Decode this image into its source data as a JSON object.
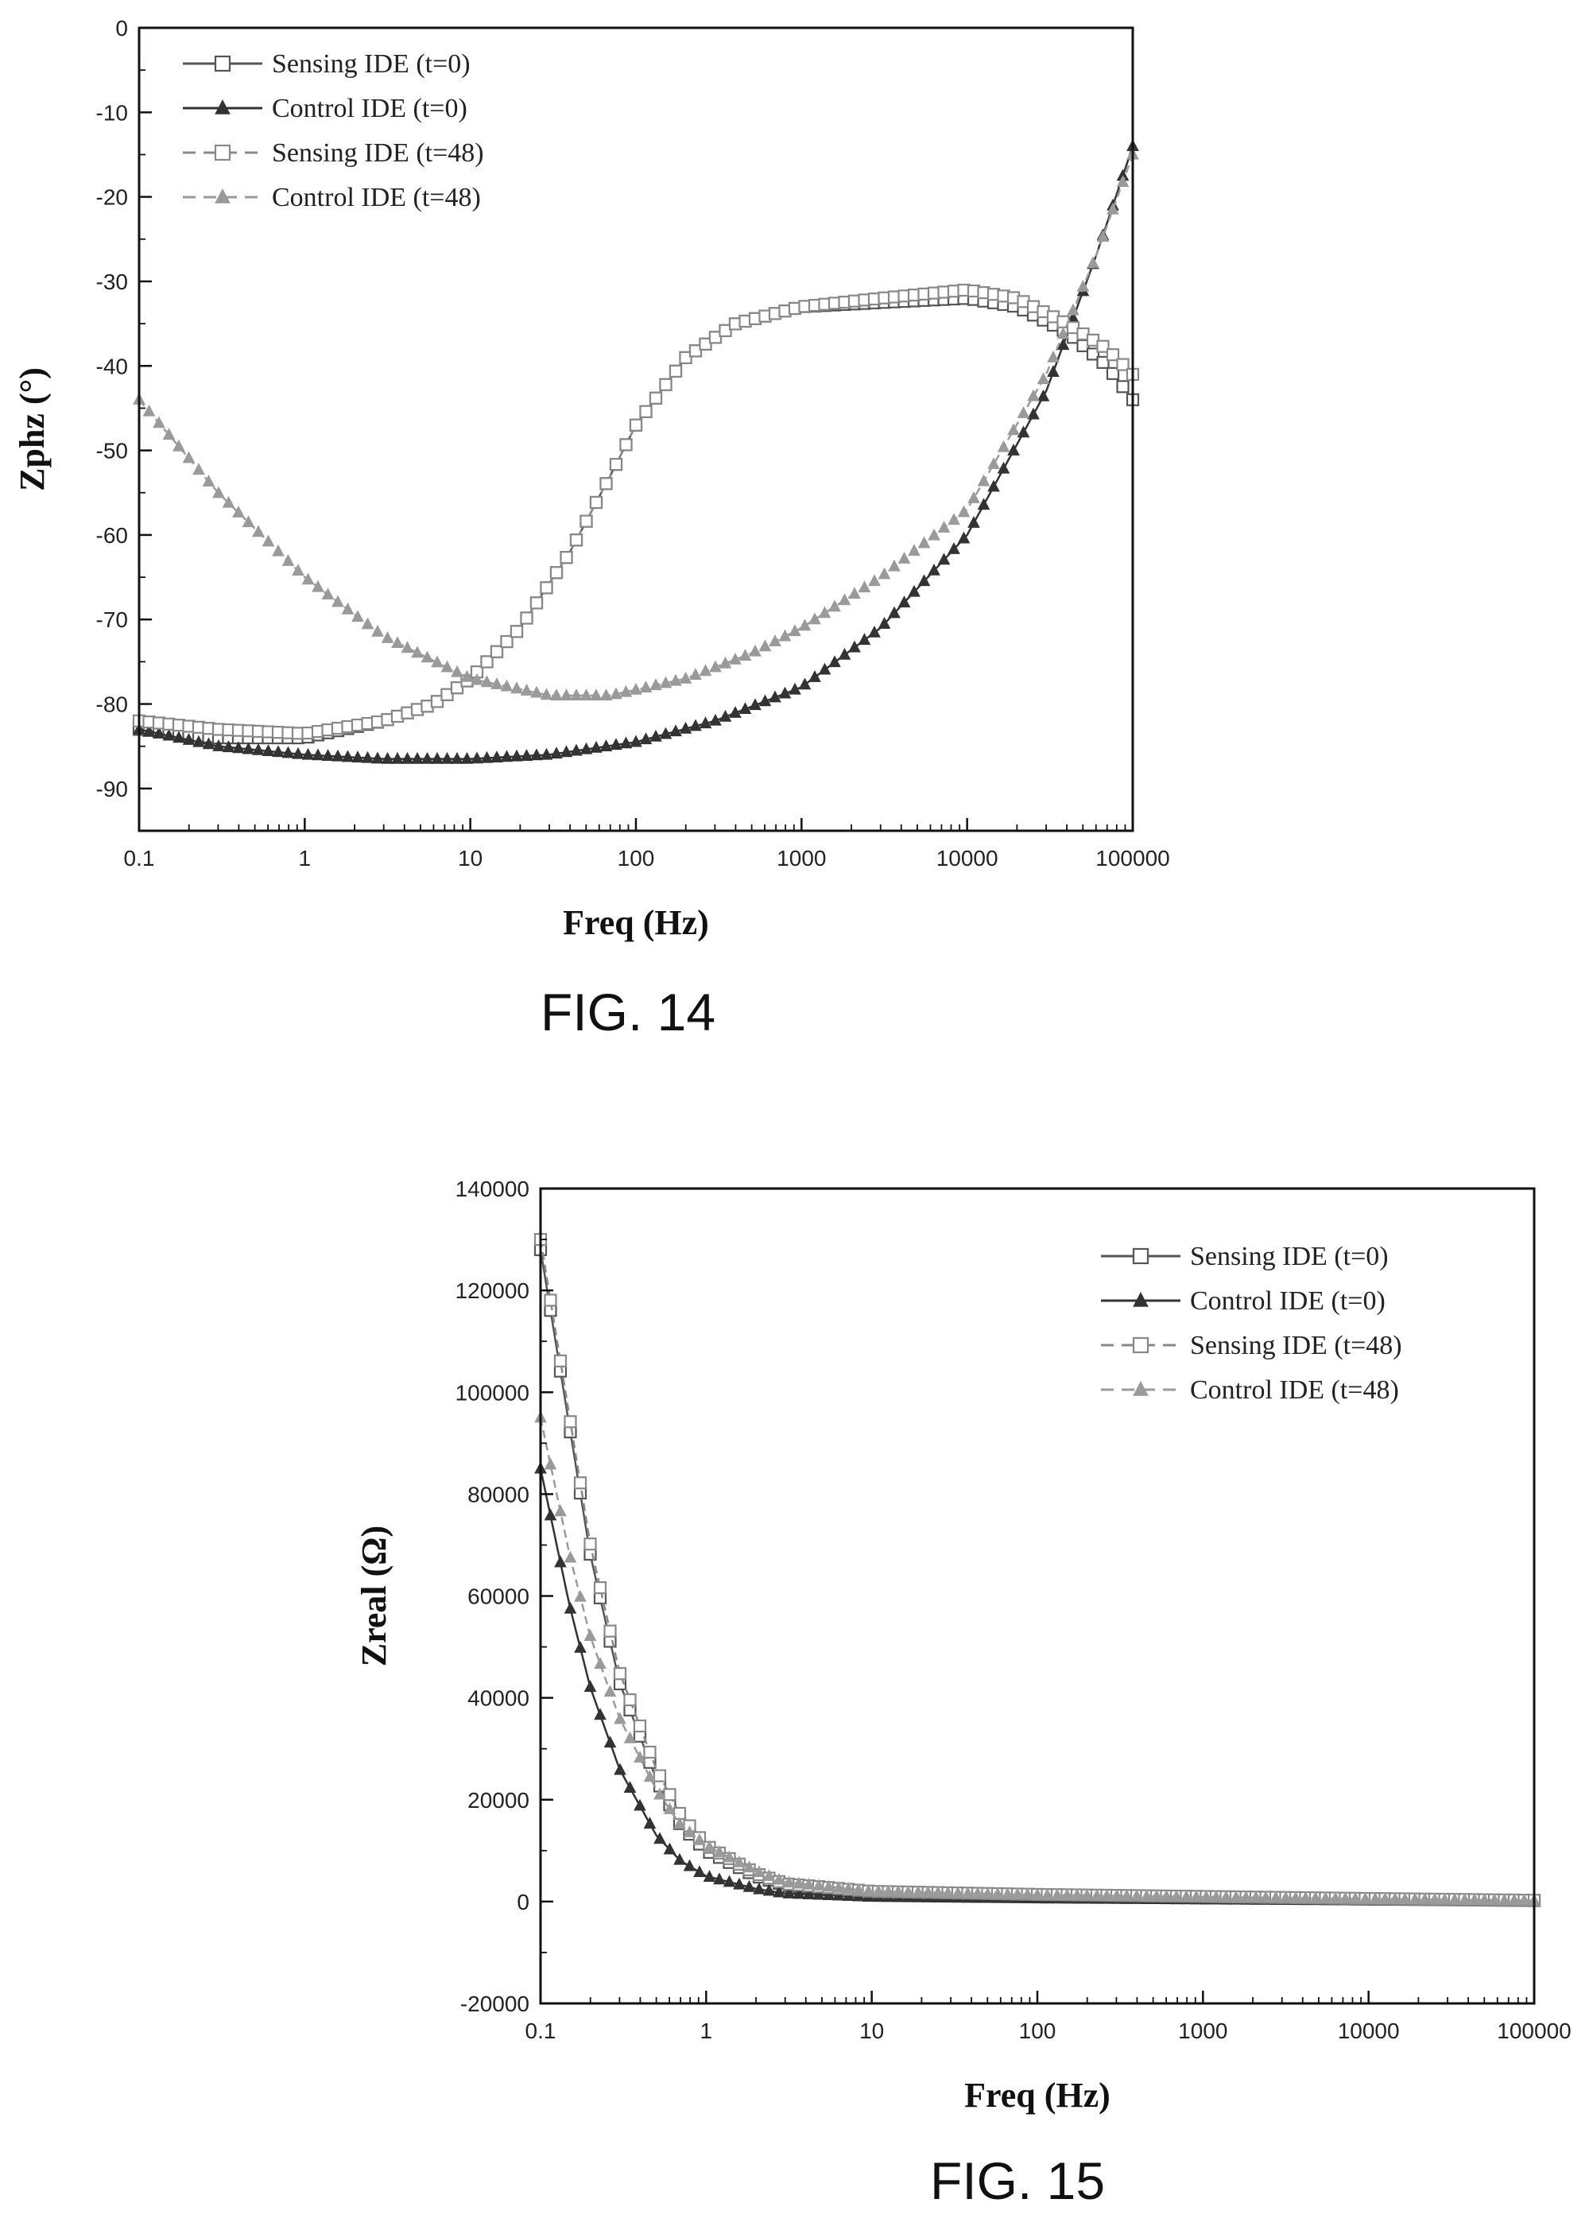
{
  "figures": [
    {
      "caption": "FIG. 14",
      "chart_data": {
        "type": "scatter",
        "title": "",
        "xlabel": "Freq (Hz)",
        "ylabel": "Zphz (°)",
        "xscale": "log",
        "xlim": [
          0.1,
          100000
        ],
        "ylim": [
          -95,
          0
        ],
        "xticks": [
          "0.1",
          "1",
          "10",
          "100",
          "1000",
          "10000",
          "100000"
        ],
        "yticks": [
          "0",
          "-10",
          "-20",
          "-30",
          "-40",
          "-50",
          "-60",
          "-70",
          "-80",
          "-90"
        ],
        "legend_position": "top-left",
        "grid": false,
        "series": [
          {
            "name": "Sensing IDE (t=0)",
            "marker": "square-open",
            "line": "solid",
            "color": "#555555",
            "points": [
              [
                0.1,
                -83
              ],
              [
                0.3,
                -84
              ],
              [
                1,
                -84
              ],
              [
                3,
                -82
              ],
              [
                6,
                -80
              ],
              [
                10,
                -77
              ],
              [
                20,
                -71
              ],
              [
                40,
                -62
              ],
              [
                70,
                -53
              ],
              [
                100,
                -47
              ],
              [
                200,
                -39
              ],
              [
                400,
                -35
              ],
              [
                1000,
                -33
              ],
              [
                3000,
                -32.5
              ],
              [
                10000,
                -32
              ],
              [
                20000,
                -33
              ],
              [
                40000,
                -36
              ],
              [
                70000,
                -40
              ],
              [
                100000,
                -44
              ]
            ]
          },
          {
            "name": "Control IDE (t=0)",
            "marker": "triangle-filled",
            "line": "solid",
            "color": "#333333",
            "points": [
              [
                0.1,
                -83
              ],
              [
                0.3,
                -85
              ],
              [
                1,
                -86
              ],
              [
                3,
                -86.5
              ],
              [
                10,
                -86.5
              ],
              [
                30,
                -86
              ],
              [
                100,
                -84.5
              ],
              [
                300,
                -82
              ],
              [
                1000,
                -78
              ],
              [
                3000,
                -71
              ],
              [
                10000,
                -60
              ],
              [
                30000,
                -43
              ],
              [
                60000,
                -27
              ],
              [
                100000,
                -14
              ]
            ]
          },
          {
            "name": "Sensing IDE (t=48)",
            "marker": "square-open",
            "line": "dashed",
            "color": "#888888",
            "points": [
              [
                0.1,
                -82
              ],
              [
                0.3,
                -83
              ],
              [
                1,
                -83.5
              ],
              [
                3,
                -82
              ],
              [
                6,
                -80
              ],
              [
                10,
                -77
              ],
              [
                20,
                -71
              ],
              [
                40,
                -62
              ],
              [
                70,
                -53
              ],
              [
                100,
                -47
              ],
              [
                200,
                -39
              ],
              [
                400,
                -35
              ],
              [
                1000,
                -33
              ],
              [
                3000,
                -32
              ],
              [
                10000,
                -31
              ],
              [
                20000,
                -32
              ],
              [
                40000,
                -35
              ],
              [
                70000,
                -38
              ],
              [
                100000,
                -41
              ]
            ]
          },
          {
            "name": "Control IDE (t=48)",
            "marker": "triangle-filled",
            "line": "dashed",
            "color": "#9a9a9a",
            "points": [
              [
                0.1,
                -44
              ],
              [
                0.3,
                -55
              ],
              [
                1,
                -65
              ],
              [
                3,
                -72
              ],
              [
                10,
                -77
              ],
              [
                30,
                -79
              ],
              [
                70,
                -79
              ],
              [
                200,
                -77
              ],
              [
                500,
                -74
              ],
              [
                1000,
                -71
              ],
              [
                3000,
                -65
              ],
              [
                10000,
                -57
              ],
              [
                30000,
                -41
              ],
              [
                60000,
                -27
              ],
              [
                100000,
                -15
              ]
            ]
          }
        ]
      }
    },
    {
      "caption": "FIG. 15",
      "chart_data": {
        "type": "scatter",
        "title": "",
        "xlabel": "Freq (Hz)",
        "ylabel": "Zreal (Ω)",
        "xscale": "log",
        "xlim": [
          0.1,
          100000
        ],
        "ylim": [
          -20000,
          140000
        ],
        "xticks": [
          "0.1",
          "1",
          "10",
          "100",
          "1000",
          "10000",
          "100000"
        ],
        "yticks": [
          "140000",
          "120000",
          "100000",
          "80000",
          "60000",
          "40000",
          "20000",
          "0",
          "-20000"
        ],
        "legend_position": "top-right",
        "grid": false,
        "series": [
          {
            "name": "Sensing IDE (t=0)",
            "marker": "square-open",
            "line": "solid",
            "color": "#555555",
            "points": [
              [
                0.1,
                128000
              ],
              [
                0.15,
                93000
              ],
              [
                0.2,
                68000
              ],
              [
                0.3,
                43000
              ],
              [
                0.5,
                24000
              ],
              [
                0.7,
                15000
              ],
              [
                1,
                10000
              ],
              [
                2,
                5000
              ],
              [
                3,
                3200
              ],
              [
                10,
                1800
              ],
              [
                100,
                1300
              ],
              [
                1000,
                900
              ],
              [
                10000,
                500
              ],
              [
                100000,
                200
              ]
            ]
          },
          {
            "name": "Control IDE (t=0)",
            "marker": "triangle-filled",
            "line": "solid",
            "color": "#333333",
            "points": [
              [
                0.1,
                85000
              ],
              [
                0.15,
                58000
              ],
              [
                0.2,
                42000
              ],
              [
                0.3,
                26000
              ],
              [
                0.5,
                13000
              ],
              [
                0.7,
                8000
              ],
              [
                1,
                5000
              ],
              [
                2,
                2500
              ],
              [
                3,
                1600
              ],
              [
                10,
                900
              ],
              [
                100,
                600
              ],
              [
                1000,
                400
              ],
              [
                10000,
                200
              ],
              [
                100000,
                100
              ]
            ]
          },
          {
            "name": "Sensing IDE (t=48)",
            "marker": "square-open",
            "line": "dashed",
            "color": "#888888",
            "points": [
              [
                0.1,
                130000
              ],
              [
                0.15,
                95000
              ],
              [
                0.2,
                70000
              ],
              [
                0.3,
                45000
              ],
              [
                0.5,
                26000
              ],
              [
                0.7,
                17000
              ],
              [
                1,
                11000
              ],
              [
                2,
                5500
              ],
              [
                3,
                3500
              ],
              [
                10,
                2000
              ],
              [
                100,
                1400
              ],
              [
                1000,
                1000
              ],
              [
                10000,
                600
              ],
              [
                100000,
                250
              ]
            ]
          },
          {
            "name": "Control IDE (t=48)",
            "marker": "triangle-filled",
            "line": "dashed",
            "color": "#9a9a9a",
            "points": [
              [
                0.1,
                95000
              ],
              [
                0.15,
                68000
              ],
              [
                0.2,
                52000
              ],
              [
                0.3,
                36000
              ],
              [
                0.5,
                22000
              ],
              [
                0.7,
                15000
              ],
              [
                1,
                11000
              ],
              [
                2,
                6000
              ],
              [
                3,
                3800
              ],
              [
                10,
                2000
              ],
              [
                100,
                1300
              ],
              [
                1000,
                900
              ],
              [
                10000,
                500
              ],
              [
                100000,
                200
              ]
            ]
          }
        ]
      }
    }
  ]
}
